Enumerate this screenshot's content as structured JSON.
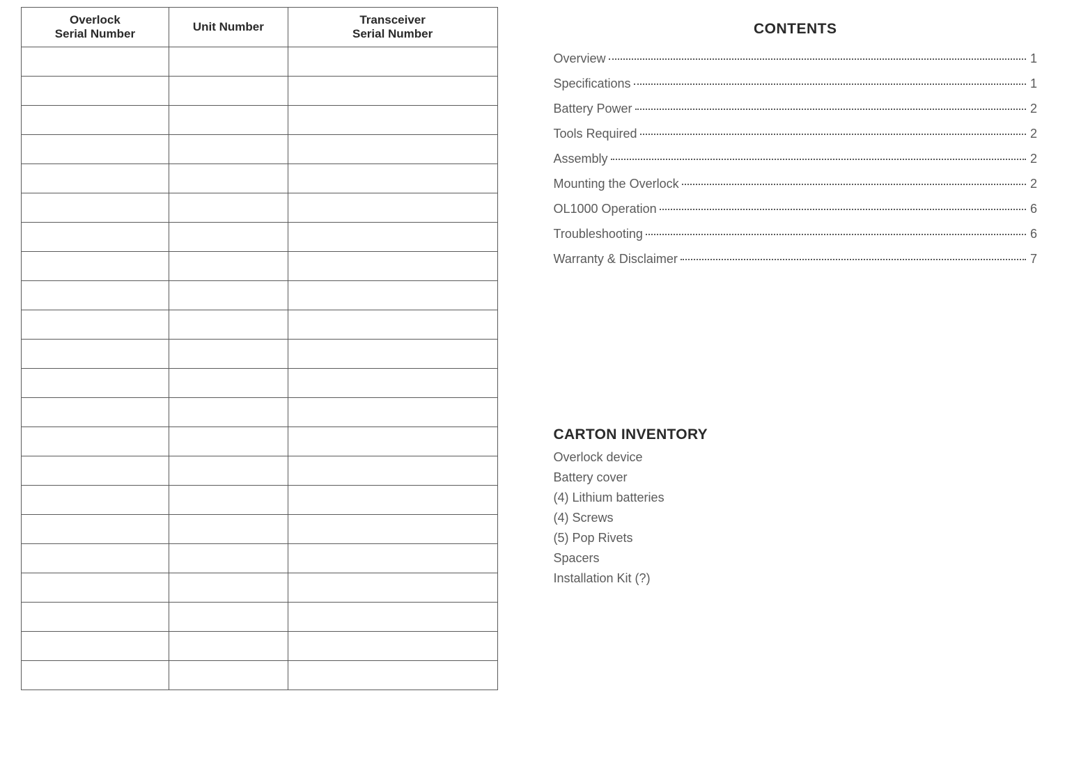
{
  "serialTable": {
    "headers": [
      "Overlock\nSerial Number",
      "Unit Number",
      "Transceiver\nSerial Number"
    ],
    "numRows": 22,
    "thickRows": [
      7,
      15
    ]
  },
  "contents": {
    "title": "CONTENTS",
    "entries": [
      {
        "label": "Overview",
        "page": "1"
      },
      {
        "label": "Specifications ",
        "page": "1"
      },
      {
        "label": "Battery Power ",
        "page": "2"
      },
      {
        "label": "Tools Required",
        "page": "2"
      },
      {
        "label": "Assembly ",
        "page": "2"
      },
      {
        "label": "Mounting the Overlock",
        "page": "2"
      },
      {
        "label": "OL1000 Operation  ",
        "page": "6"
      },
      {
        "label": "Troubleshooting",
        "page": "6"
      },
      {
        "label": "Warranty & Disclaimer ",
        "page": "7"
      }
    ]
  },
  "inventory": {
    "title": "CARTON INVENTORY",
    "items": [
      "Overlock device",
      "Battery cover",
      "(4) Lithium batteries",
      "(4) Screws",
      "(5) Pop Rivets",
      "Spacers",
      "Installation Kit (?)"
    ]
  },
  "styling": {
    "bodyBg": "#ffffff",
    "tableBorder": "#5a5a5a",
    "headerText": "#2a2a2a",
    "bodyText": "#5a5a5a"
  }
}
